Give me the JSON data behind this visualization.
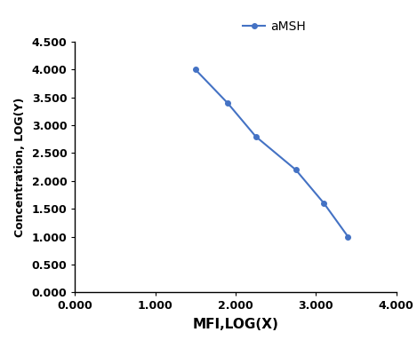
{
  "x": [
    1.5,
    1.9,
    2.25,
    2.75,
    3.1,
    3.4
  ],
  "y": [
    4.0,
    3.4,
    2.8,
    2.2,
    1.6,
    1.0
  ],
  "line_color": "#4472C4",
  "marker": "o",
  "marker_size": 4,
  "line_width": 1.5,
  "xlabel": "MFI,LOG(X)",
  "ylabel": "Concentration, LOG(Y)",
  "xlim": [
    0.0,
    4.0
  ],
  "ylim": [
    0.0,
    4.5
  ],
  "xticks": [
    0.0,
    1.0,
    2.0,
    3.0,
    4.0
  ],
  "yticks": [
    0.0,
    0.5,
    1.0,
    1.5,
    2.0,
    2.5,
    3.0,
    3.5,
    4.0,
    4.5
  ],
  "legend_label": "aMSH",
  "xlabel_fontsize": 11,
  "ylabel_fontsize": 9,
  "tick_fontsize": 9,
  "legend_fontsize": 10,
  "background_color": "#ffffff"
}
